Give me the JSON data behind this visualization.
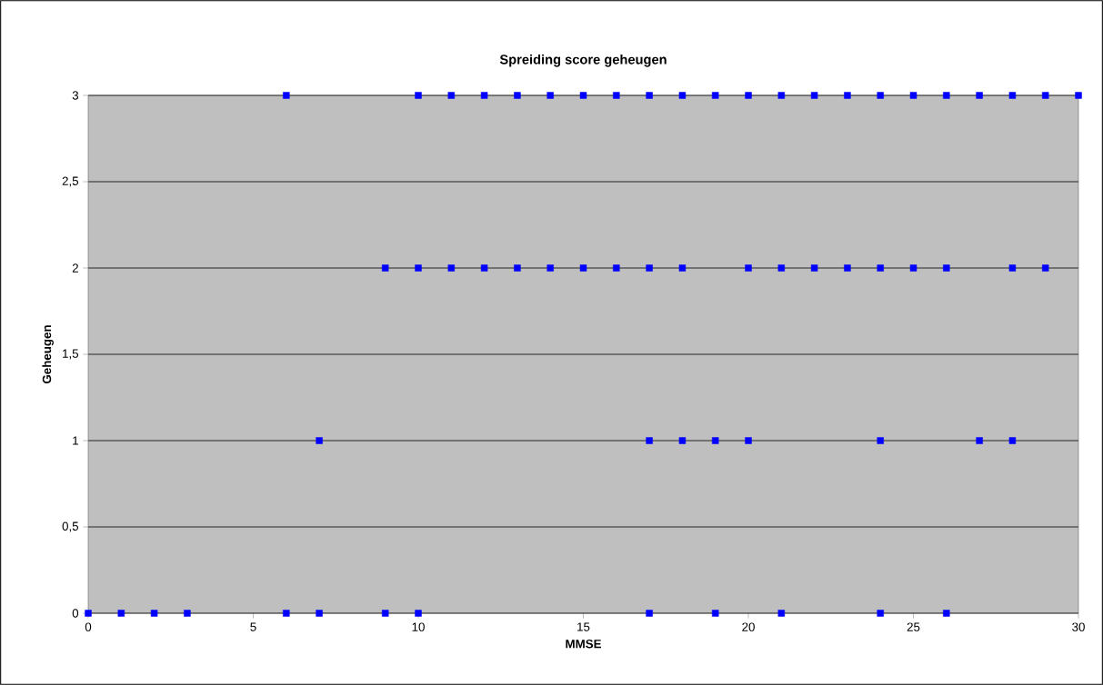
{
  "chart_data": {
    "type": "scatter",
    "title": "Spreiding score geheugen",
    "xlabel": "MMSE",
    "ylabel": "Geheugen",
    "series": [
      {
        "color": "#0000ff",
        "x": [
          6,
          10,
          11,
          12,
          13,
          14,
          15,
          16,
          17,
          18,
          19,
          20,
          21,
          22,
          23,
          24,
          25,
          26,
          27,
          28,
          29,
          30,
          9,
          10,
          11,
          12,
          13,
          14,
          15,
          16,
          17,
          18,
          20,
          21,
          22,
          23,
          24,
          25,
          26,
          28,
          29,
          7,
          17,
          18,
          19,
          20,
          24,
          27,
          28,
          0,
          1,
          2,
          3,
          6,
          7,
          9,
          10,
          17,
          19,
          21,
          24,
          26
        ],
        "values": [
          3,
          3,
          3,
          3,
          3,
          3,
          3,
          3,
          3,
          3,
          3,
          3,
          3,
          3,
          3,
          3,
          3,
          3,
          3,
          3,
          3,
          3,
          2,
          2,
          2,
          2,
          2,
          2,
          2,
          2,
          2,
          2,
          2,
          2,
          2,
          2,
          2,
          2,
          2,
          2,
          2,
          1,
          1,
          1,
          1,
          1,
          1,
          1,
          1,
          0,
          0,
          0,
          0,
          0,
          0,
          0,
          0,
          0,
          0,
          0,
          0,
          0
        ]
      }
    ],
    "marker": "square",
    "grid": "y",
    "xlim": [
      0,
      30
    ],
    "xticks": [
      0,
      5,
      10,
      15,
      20,
      25,
      30
    ],
    "ylim": [
      0,
      3
    ],
    "yticks": [
      0,
      {
        "value": 0.5,
        "label": "0,5"
      },
      1,
      {
        "value": 1.5,
        "label": "1,5"
      },
      2,
      {
        "value": 2.5,
        "label": "2,5"
      },
      3
    ]
  }
}
